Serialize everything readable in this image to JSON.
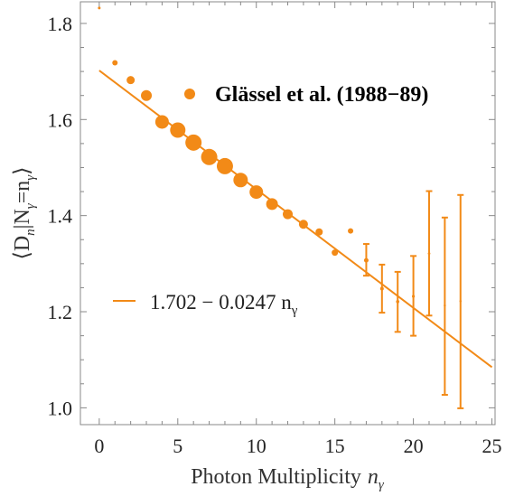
{
  "chart_data": {
    "type": "scatter",
    "title": "Glässel et al. (1988−89)",
    "xlabel": "Photon Multiplicity",
    "xlabel_var": "n",
    "xlabel_sub": "γ",
    "ylabel_parts": {
      "left": "⟨D",
      "sub1": "n",
      "bar": "|N",
      "sub2": "γ",
      "eq": "=n",
      "sub3": "γ",
      "right": "⟩"
    },
    "xlim": [
      -1.2,
      25.2
    ],
    "ylim": [
      0.965,
      1.845
    ],
    "xticks": [
      0,
      5,
      10,
      15,
      20,
      25
    ],
    "yticks": [
      1.0,
      1.2,
      1.4,
      1.6,
      1.8
    ],
    "ytick_labels": [
      "1.0",
      "1.2",
      "1.4",
      "1.6",
      "1.8"
    ],
    "grid": false,
    "colors": {
      "marker": "#f28a17",
      "frame": "#888888"
    },
    "series": [
      {
        "points": [
          {
            "x": 0,
            "y": 1.832,
            "size": 1.5
          },
          {
            "x": 1,
            "y": 1.718,
            "size": 3
          },
          {
            "x": 2,
            "y": 1.682,
            "size": 4.5
          },
          {
            "x": 3,
            "y": 1.65,
            "size": 6
          },
          {
            "x": 4,
            "y": 1.595,
            "size": 7.5
          },
          {
            "x": 5,
            "y": 1.578,
            "size": 8.5
          },
          {
            "x": 6,
            "y": 1.552,
            "size": 9
          },
          {
            "x": 7,
            "y": 1.522,
            "size": 9
          },
          {
            "x": 8,
            "y": 1.503,
            "size": 9
          },
          {
            "x": 9,
            "y": 1.474,
            "size": 8
          },
          {
            "x": 10,
            "y": 1.449,
            "size": 7.5
          },
          {
            "x": 11,
            "y": 1.424,
            "size": 6.5
          },
          {
            "x": 12,
            "y": 1.403,
            "size": 5.5
          },
          {
            "x": 13,
            "y": 1.382,
            "size": 5
          },
          {
            "x": 14,
            "y": 1.366,
            "size": 4
          },
          {
            "x": 15,
            "y": 1.323,
            "size": 3.5
          },
          {
            "x": 16,
            "y": 1.368,
            "size": 3
          },
          {
            "x": 17,
            "y": 1.307,
            "size": 2.5,
            "yerr": [
              1.275,
              1.341
            ]
          },
          {
            "x": 18,
            "y": 1.248,
            "size": 2,
            "yerr": [
              1.198,
              1.298
            ]
          },
          {
            "x": 19,
            "y": 1.221,
            "size": 1.8,
            "yerr": [
              1.158,
              1.283
            ]
          },
          {
            "x": 20,
            "y": 1.232,
            "size": 1.6,
            "yerr": [
              1.15,
              1.316
            ]
          },
          {
            "x": 21,
            "y": 1.321,
            "size": 1.4,
            "yerr": [
              1.192,
              1.451
            ]
          },
          {
            "x": 22,
            "y": 1.213,
            "size": 1.2,
            "yerr": [
              1.027,
              1.396
            ]
          },
          {
            "x": 23,
            "y": 1.222,
            "size": 1.2,
            "yerr": [
              0.999,
              1.443
            ]
          }
        ]
      }
    ],
    "fit": {
      "intercept": 1.702,
      "slope": -0.0247,
      "x_range": [
        0,
        25
      ],
      "label_main": "1.702 − 0.0247 n",
      "label_sub": "γ"
    }
  }
}
